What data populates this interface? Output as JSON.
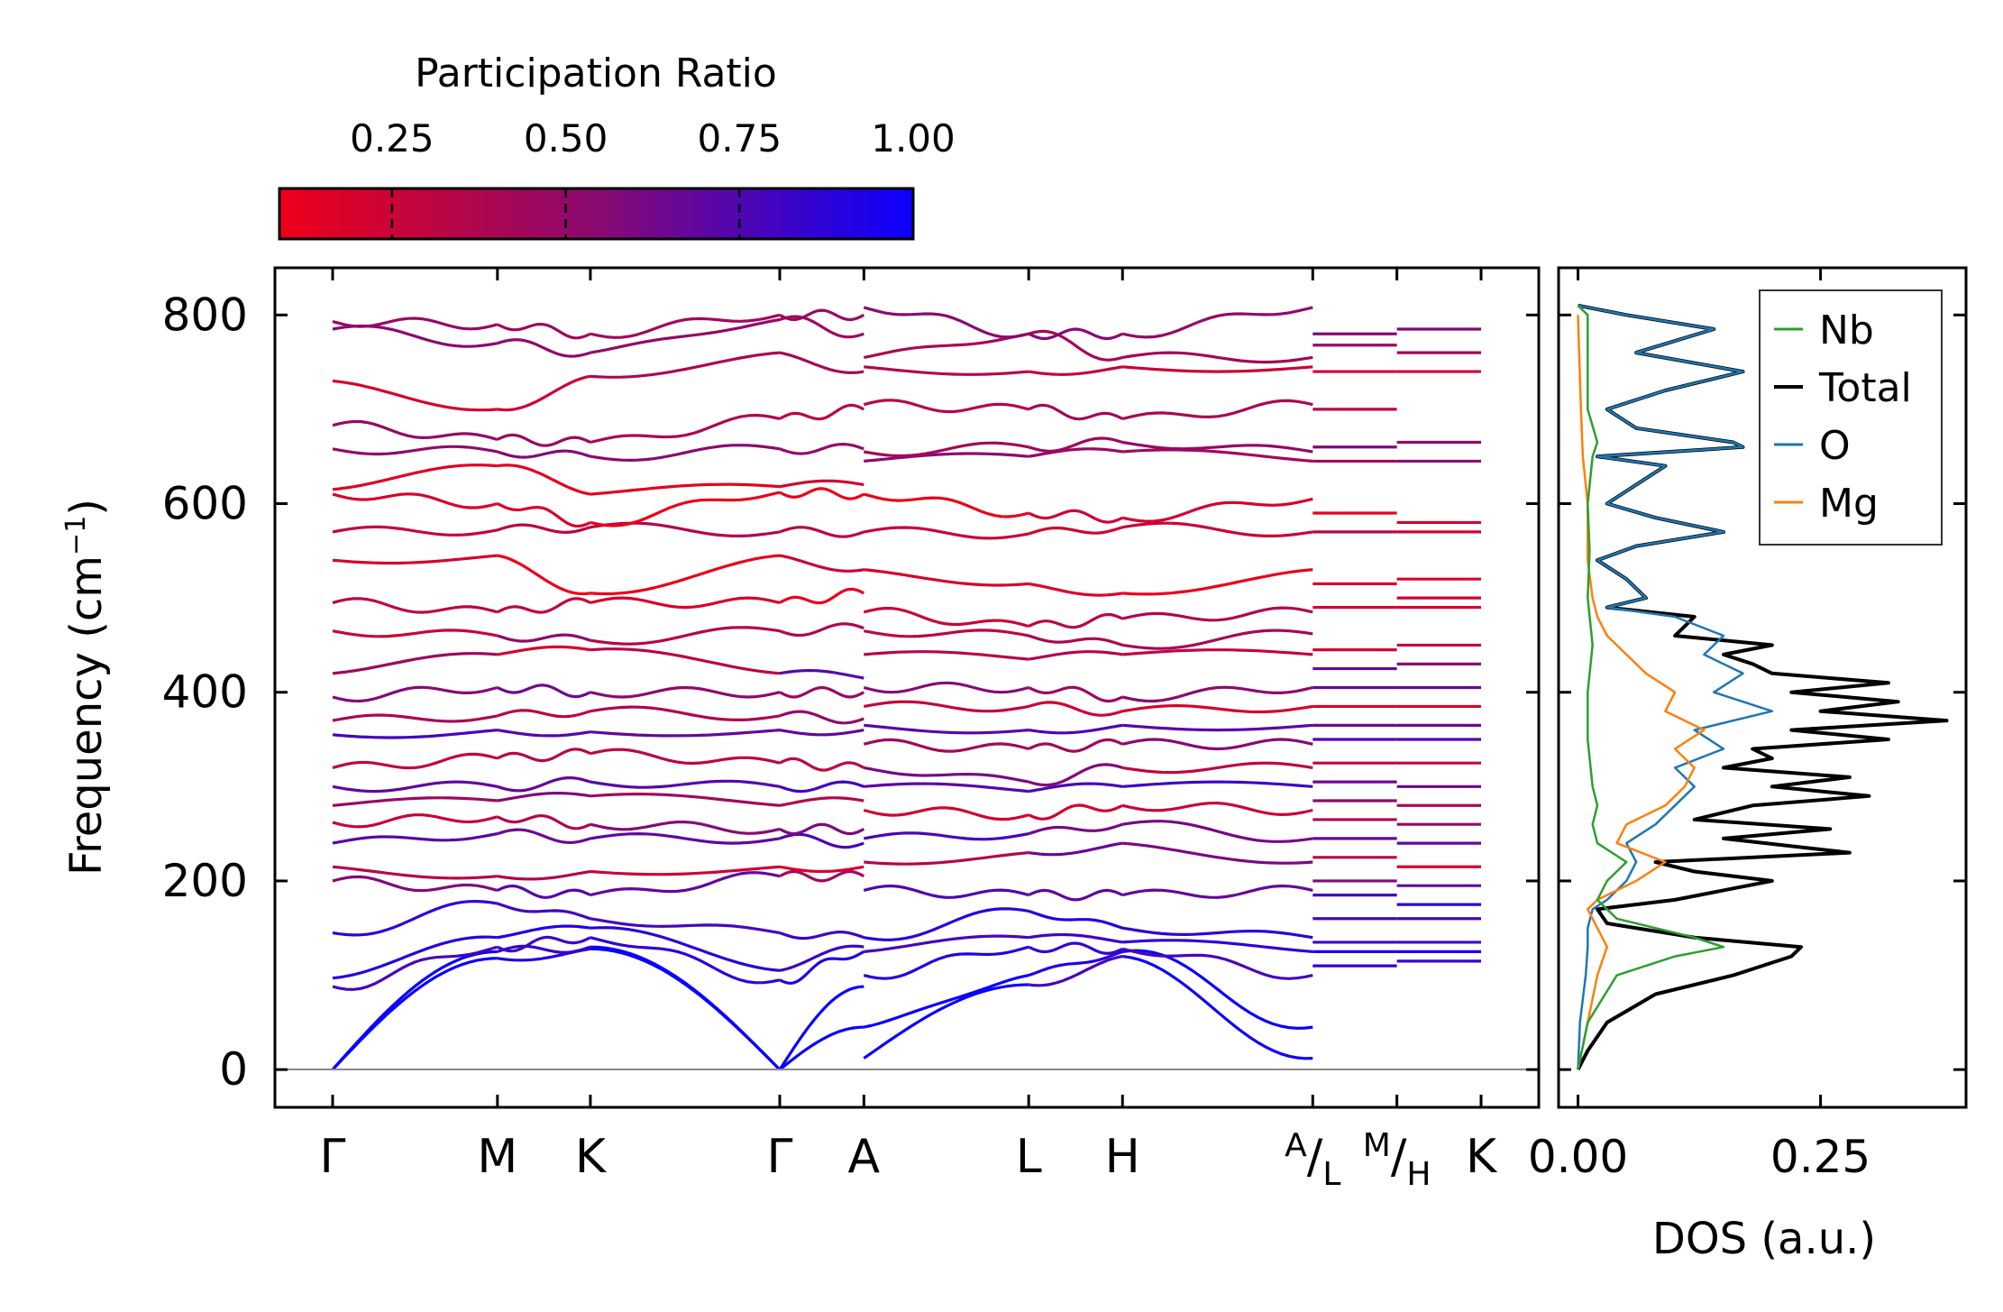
{
  "colorbar": {
    "title": "Participation Ratio",
    "ticks": [
      0.25,
      0.5,
      0.75,
      1.0
    ],
    "tick_labels": [
      "0.25",
      "0.50",
      "0.75",
      "1.00"
    ],
    "range": [
      0.088,
      1.0
    ],
    "color_low": "#ee0018",
    "color_high": "#0a00ff"
  },
  "chart_data": [
    {
      "type": "line",
      "title": "",
      "xlabel": "",
      "ylabel": "Frequency (cm⁻¹)",
      "ylabel_parts": {
        "base": "Frequency (cm",
        "sup": "−1",
        "close": ")"
      },
      "ylim": [
        -40,
        850
      ],
      "yticks": [
        0,
        200,
        400,
        600,
        800
      ],
      "ytick_labels": [
        "0",
        "200",
        "400",
        "600",
        "800"
      ],
      "kpath_positions": [
        0,
        1.88,
        2.94,
        5.1,
        6.06,
        7.94,
        9.01,
        11.18,
        12.14,
        13.1
      ],
      "kpath_labels": [
        "Γ",
        "M",
        "K",
        "Γ",
        "A",
        "L",
        "H",
        "A/L",
        "M/H",
        "K"
      ],
      "kpath_label_display": [
        {
          "main": "Γ"
        },
        {
          "main": "M"
        },
        {
          "main": "K"
        },
        {
          "main": "Γ"
        },
        {
          "main": "A"
        },
        {
          "main": "L"
        },
        {
          "main": "H"
        },
        {
          "sup": "A",
          "slash": "/",
          "sub": "L"
        },
        {
          "sup": "M",
          "slash": "/",
          "sub": "H"
        },
        {
          "main": "K"
        }
      ],
      "segment_breaks": [
        6.06,
        11.18,
        12.14
      ],
      "color_encoding": "participation_ratio",
      "bands_description": "phonon branches; approximate frequencies at k-path endpoints",
      "segments": [
        {
          "from": "Γ",
          "to": "M",
          "x": [
            0,
            1.88
          ],
          "freq_start": [
            0,
            0,
            88,
            97,
            145,
            200,
            215,
            240,
            262,
            280,
            300,
            320,
            355,
            370,
            395,
            420,
            465,
            495,
            540,
            570,
            610,
            615,
            658,
            683,
            730,
            785,
            793
          ],
          "freq_end": [
            118,
            125,
            130,
            140,
            176,
            190,
            205,
            250,
            268,
            285,
            300,
            330,
            360,
            375,
            405,
            440,
            460,
            485,
            545,
            572,
            600,
            640,
            655,
            668,
            700,
            770,
            790
          ],
          "pr_start": [
            1.0,
            1.0,
            0.92,
            0.78,
            0.72,
            0.55,
            0.45,
            0.35,
            0.55,
            0.6,
            0.5,
            0.45,
            0.6,
            0.55,
            0.65,
            0.3,
            0.25,
            0.35,
            0.5,
            0.15,
            0.2,
            0.3,
            0.35,
            0.4,
            0.45,
            0.4,
            0.35
          ]
        },
        {
          "from": "M",
          "to": "K",
          "x": [
            1.88,
            2.94
          ],
          "freq_start": [
            118,
            125,
            130,
            140,
            176,
            190,
            205,
            250,
            268,
            285,
            300,
            330,
            360,
            375,
            405,
            440,
            460,
            485,
            545,
            572,
            600,
            640,
            655,
            668,
            700,
            770,
            790
          ],
          "freq_end": [
            128,
            130,
            140,
            150,
            160,
            185,
            210,
            245,
            260,
            290,
            305,
            335,
            358,
            380,
            400,
            445,
            455,
            495,
            505,
            575,
            580,
            610,
            650,
            665,
            735,
            760,
            780
          ]
        },
        {
          "from": "K",
          "to": "Γ",
          "x": [
            2.94,
            5.1
          ],
          "freq_start": [
            128,
            130,
            140,
            150,
            160,
            185,
            210,
            245,
            260,
            290,
            305,
            335,
            358,
            380,
            400,
            445,
            455,
            495,
            505,
            575,
            580,
            610,
            650,
            665,
            735,
            760,
            780
          ],
          "freq_end": [
            0,
            0,
            95,
            105,
            145,
            205,
            215,
            245,
            255,
            280,
            300,
            325,
            360,
            375,
            400,
            420,
            465,
            495,
            545,
            570,
            612,
            618,
            658,
            690,
            760,
            795,
            800
          ]
        },
        {
          "from": "Γ",
          "to": "A",
          "x": [
            5.1,
            6.06
          ],
          "freq_start": [
            0,
            0,
            95,
            105,
            145,
            205,
            215,
            245,
            255,
            280,
            300,
            325,
            360,
            375,
            400,
            420,
            465,
            495,
            545,
            570,
            612,
            618,
            658,
            690,
            760,
            795,
            800
          ],
          "freq_end": [
            45,
            88,
            125,
            130,
            140,
            205,
            215,
            240,
            255,
            285,
            300,
            320,
            360,
            372,
            400,
            415,
            468,
            505,
            530,
            570,
            610,
            620,
            658,
            700,
            740,
            780,
            800
          ]
        },
        {
          "from": "A",
          "to": "L",
          "x": [
            6.06,
            7.94
          ],
          "freq_start": [
            12,
            45,
            100,
            125,
            140,
            190,
            220,
            245,
            275,
            300,
            320,
            345,
            365,
            385,
            405,
            440,
            465,
            485,
            530,
            570,
            610,
            645,
            655,
            705,
            745,
            755,
            808
          ],
          "freq_end": [
            90,
            100,
            130,
            140,
            168,
            185,
            230,
            250,
            270,
            295,
            305,
            340,
            360,
            385,
            405,
            435,
            460,
            470,
            515,
            568,
            590,
            650,
            660,
            700,
            740,
            780,
            780
          ]
        },
        {
          "from": "L",
          "to": "H",
          "x": [
            7.94,
            9.01
          ],
          "freq_start": [
            90,
            100,
            130,
            140,
            168,
            185,
            230,
            250,
            270,
            295,
            305,
            340,
            360,
            385,
            405,
            435,
            460,
            470,
            515,
            568,
            590,
            650,
            660,
            700,
            740,
            780,
            780
          ],
          "freq_end": [
            120,
            125,
            128,
            135,
            150,
            185,
            240,
            260,
            280,
            300,
            320,
            345,
            365,
            380,
            395,
            440,
            450,
            478,
            505,
            575,
            585,
            655,
            665,
            690,
            745,
            755,
            780
          ]
        },
        {
          "from": "H",
          "to": "A",
          "x": [
            9.01,
            11.18
          ],
          "freq_start": [
            120,
            125,
            128,
            135,
            150,
            185,
            240,
            260,
            280,
            300,
            320,
            345,
            365,
            380,
            395,
            440,
            450,
            478,
            505,
            575,
            585,
            655,
            665,
            690,
            745,
            755,
            780
          ],
          "freq_end": [
            12,
            45,
            100,
            125,
            140,
            190,
            220,
            245,
            275,
            300,
            320,
            345,
            365,
            385,
            405,
            440,
            462,
            485,
            530,
            570,
            605,
            645,
            655,
            705,
            745,
            755,
            808
          ]
        },
        {
          "from": "L",
          "to": "M",
          "x": [
            11.18,
            12.14
          ],
          "flat": true,
          "freq": [
            110,
            125,
            135,
            160,
            185,
            200,
            225,
            245,
            265,
            285,
            305,
            325,
            350,
            365,
            385,
            405,
            425,
            445,
            490,
            515,
            570,
            590,
            645,
            660,
            700,
            740,
            768,
            780
          ]
        },
        {
          "from": "H",
          "to": "K",
          "x": [
            12.14,
            13.1
          ],
          "flat": true,
          "freq": [
            115,
            125,
            135,
            160,
            175,
            195,
            215,
            240,
            260,
            280,
            300,
            325,
            350,
            365,
            385,
            405,
            430,
            450,
            490,
            500,
            520,
            570,
            580,
            645,
            665,
            740,
            760,
            785
          ]
        }
      ]
    },
    {
      "type": "line",
      "title": "",
      "xlabel": "DOS (a.u.)",
      "ylabel": "",
      "xlim": [
        -0.02,
        0.4
      ],
      "xticks": [
        0.0,
        0.25
      ],
      "xtick_labels": [
        "0.00",
        "0.25"
      ],
      "ylim": [
        -40,
        850
      ],
      "legend_placement": "top-right",
      "series": [
        {
          "name": "Total",
          "color": "#000000",
          "freq": [
            0,
            20,
            50,
            80,
            100,
            120,
            130,
            140,
            155,
            170,
            180,
            200,
            210,
            220,
            230,
            245,
            255,
            265,
            280,
            290,
            300,
            310,
            320,
            330,
            340,
            350,
            360,
            370,
            380,
            390,
            400,
            410,
            420,
            430,
            440,
            450,
            460,
            480,
            490,
            500,
            520,
            540,
            555,
            570,
            585,
            600,
            620,
            640,
            650,
            660,
            665,
            680,
            700,
            720,
            740,
            760,
            785,
            800,
            810
          ],
          "dos": [
            0.0,
            0.01,
            0.03,
            0.08,
            0.16,
            0.22,
            0.23,
            0.12,
            0.03,
            0.02,
            0.1,
            0.2,
            0.12,
            0.08,
            0.28,
            0.15,
            0.26,
            0.12,
            0.18,
            0.3,
            0.2,
            0.28,
            0.15,
            0.2,
            0.18,
            0.32,
            0.22,
            0.38,
            0.25,
            0.33,
            0.22,
            0.32,
            0.2,
            0.18,
            0.15,
            0.2,
            0.1,
            0.12,
            0.03,
            0.07,
            0.05,
            0.02,
            0.06,
            0.15,
            0.08,
            0.03,
            0.06,
            0.09,
            0.02,
            0.17,
            0.16,
            0.06,
            0.03,
            0.09,
            0.17,
            0.06,
            0.14,
            0.05,
            0.0
          ]
        },
        {
          "name": "O",
          "color": "#1f77b4",
          "freq": [
            0,
            50,
            100,
            130,
            150,
            170,
            180,
            200,
            220,
            240,
            260,
            280,
            300,
            320,
            340,
            360,
            380,
            400,
            420,
            440,
            460,
            480,
            490,
            500,
            520,
            540,
            555,
            570,
            585,
            600,
            620,
            640,
            650,
            660,
            665,
            680,
            700,
            720,
            740,
            760,
            785,
            800,
            810
          ],
          "dos": [
            0.0,
            0.002,
            0.008,
            0.01,
            0.01,
            0.015,
            0.03,
            0.05,
            0.06,
            0.05,
            0.08,
            0.1,
            0.12,
            0.1,
            0.15,
            0.12,
            0.2,
            0.14,
            0.17,
            0.13,
            0.15,
            0.1,
            0.03,
            0.07,
            0.05,
            0.02,
            0.06,
            0.15,
            0.08,
            0.03,
            0.06,
            0.09,
            0.02,
            0.17,
            0.16,
            0.06,
            0.03,
            0.09,
            0.17,
            0.06,
            0.14,
            0.05,
            0.0
          ]
        },
        {
          "name": "Mg",
          "color": "#ff7f0e",
          "freq": [
            0,
            50,
            100,
            130,
            150,
            170,
            180,
            200,
            220,
            240,
            260,
            280,
            300,
            320,
            340,
            360,
            380,
            400,
            420,
            440,
            460,
            480,
            500,
            540,
            600,
            650,
            700,
            800
          ],
          "dos": [
            0.0,
            0.01,
            0.02,
            0.03,
            0.02,
            0.01,
            0.02,
            0.06,
            0.09,
            0.04,
            0.05,
            0.09,
            0.11,
            0.12,
            0.1,
            0.13,
            0.09,
            0.1,
            0.07,
            0.05,
            0.03,
            0.02,
            0.015,
            0.01,
            0.01,
            0.005,
            0.003,
            0.0
          ]
        },
        {
          "name": "Nb",
          "color": "#2ca02c",
          "freq": [
            0,
            50,
            100,
            120,
            130,
            140,
            160,
            180,
            200,
            220,
            240,
            260,
            280,
            300,
            350,
            400,
            450,
            500,
            550,
            600,
            650,
            665,
            700,
            800,
            810
          ],
          "dos": [
            0.0,
            0.01,
            0.04,
            0.1,
            0.15,
            0.12,
            0.04,
            0.02,
            0.03,
            0.05,
            0.02,
            0.015,
            0.02,
            0.015,
            0.01,
            0.01,
            0.015,
            0.01,
            0.012,
            0.01,
            0.015,
            0.02,
            0.01,
            0.01,
            0.0
          ]
        }
      ]
    }
  ]
}
